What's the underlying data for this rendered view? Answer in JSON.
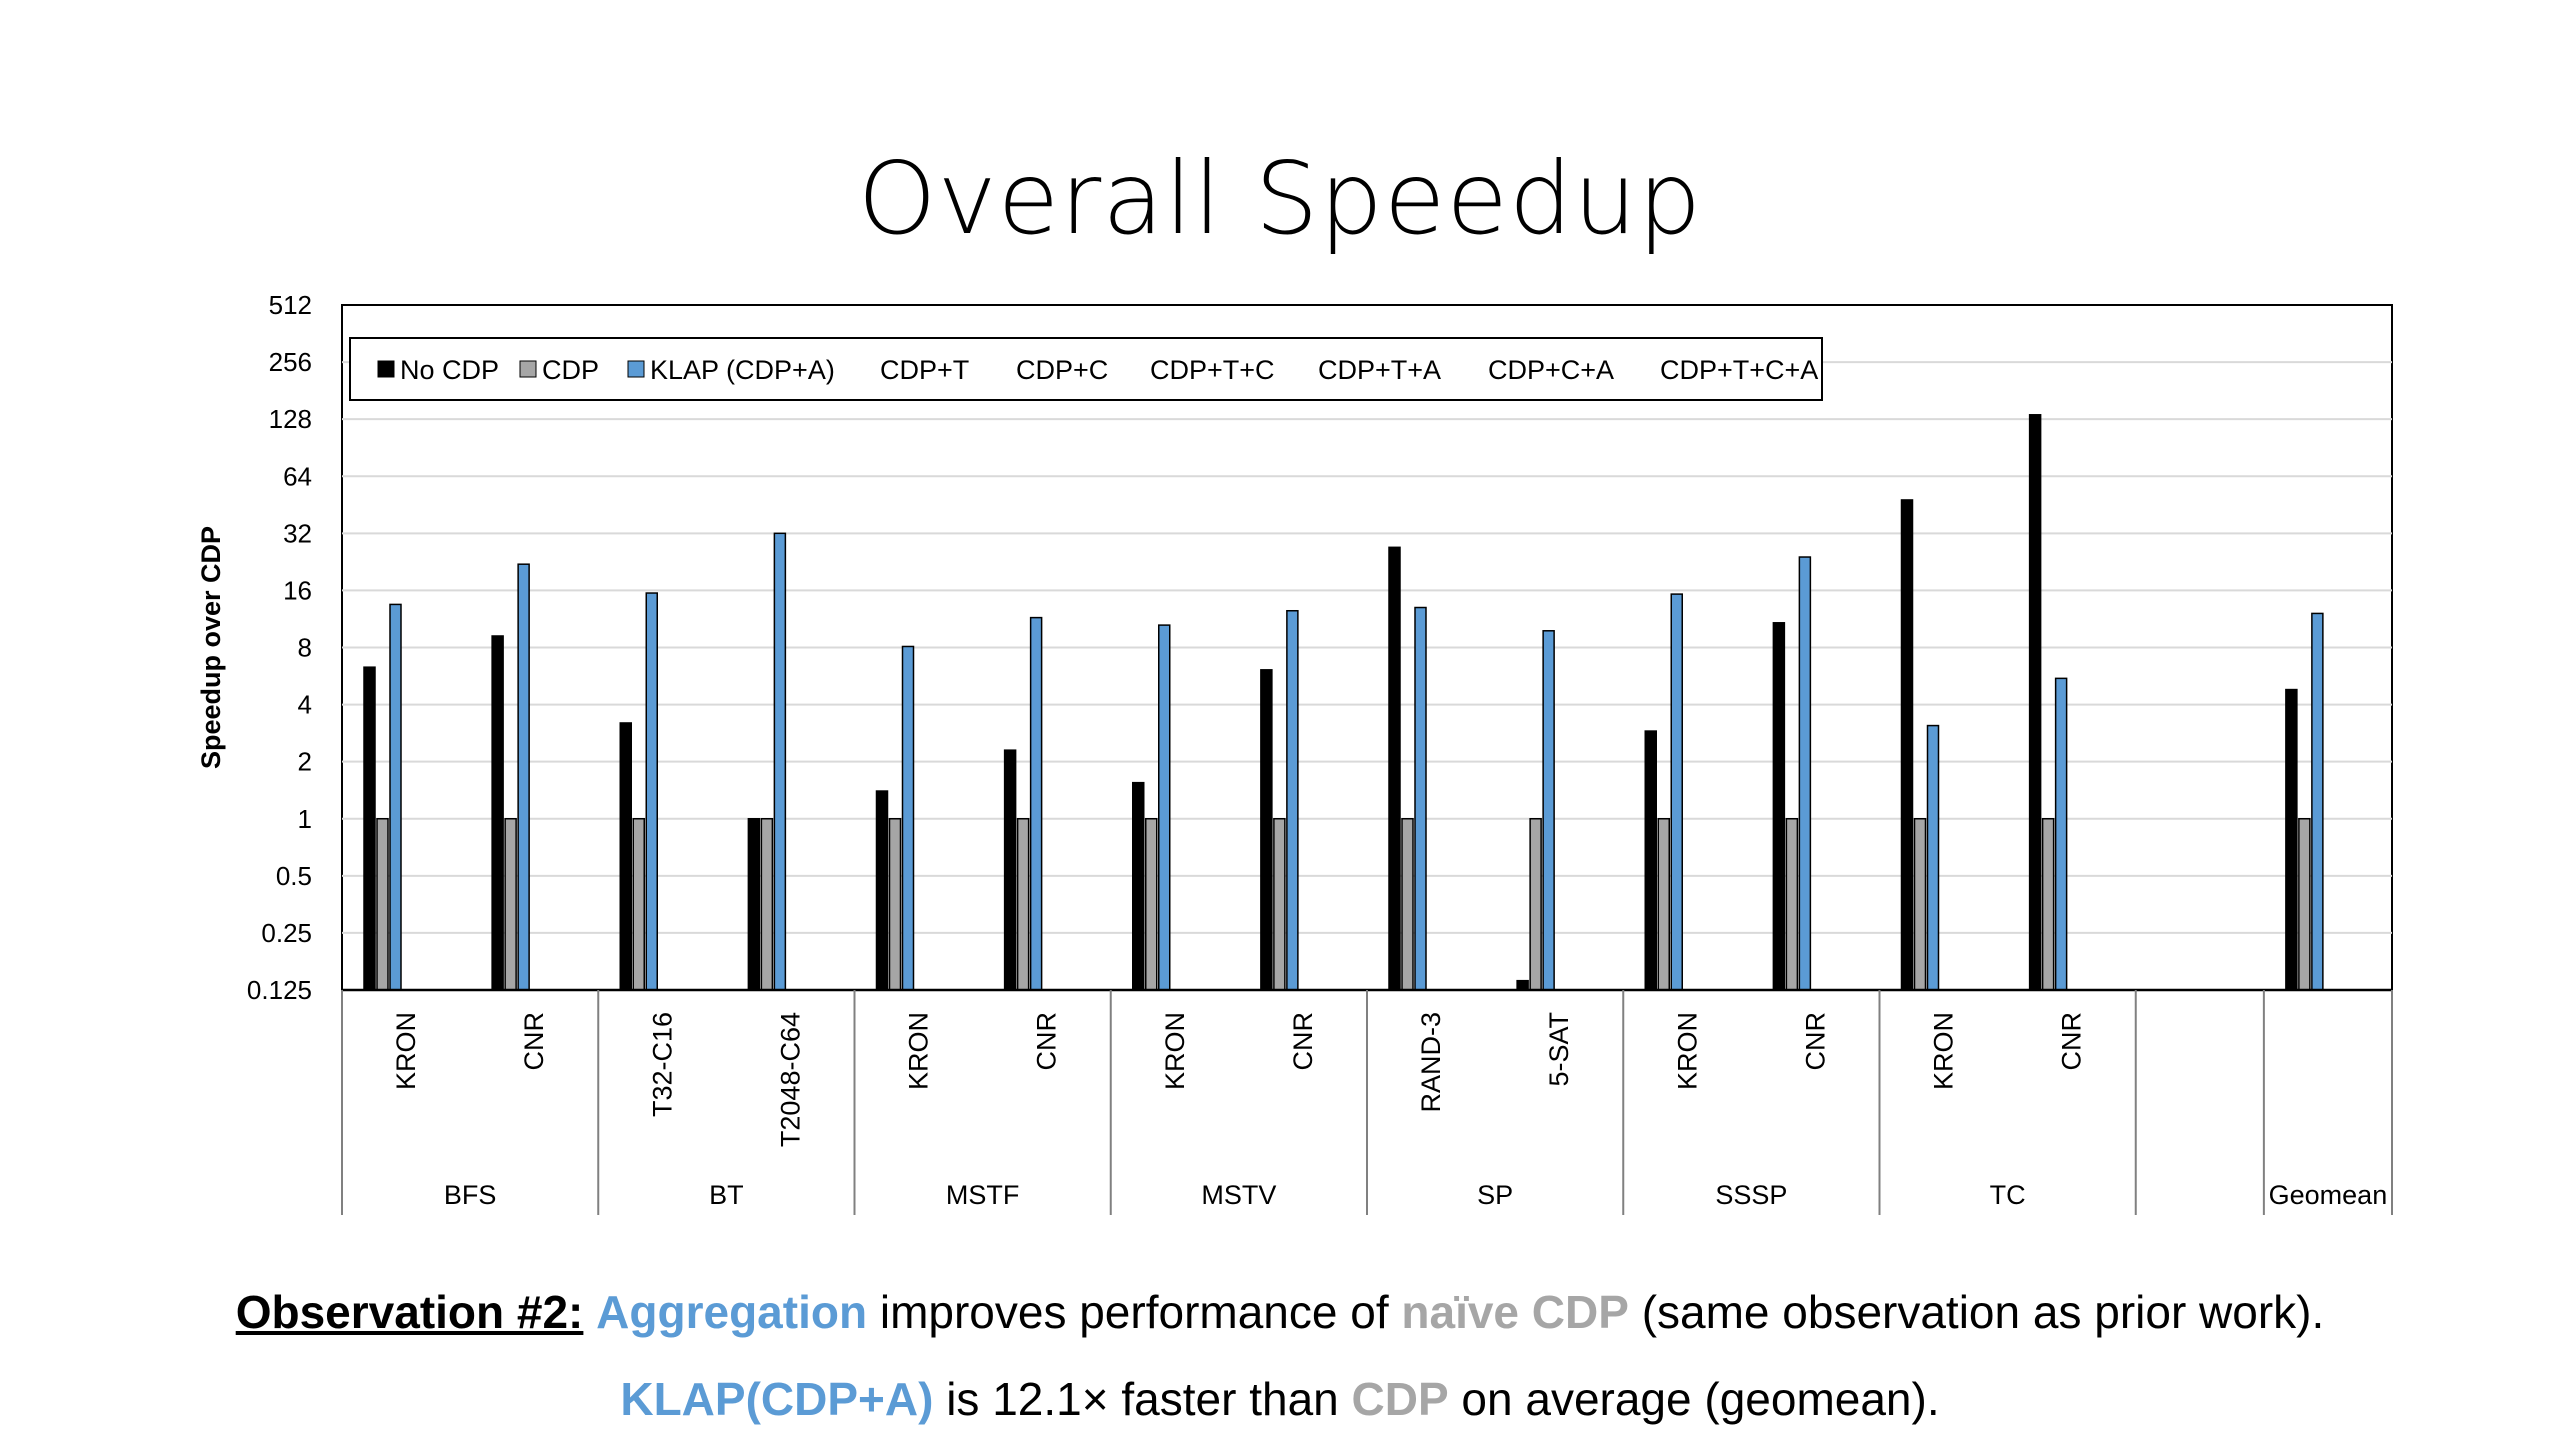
{
  "slide": {
    "title": "Overall Speedup"
  },
  "chart_data": {
    "type": "bar",
    "ylabel": "Speedup over CDP",
    "yscale": "log2",
    "ylim": [
      0.125,
      512
    ],
    "yticks": [
      "0.125",
      "0.25",
      "0.5",
      "1",
      "2",
      "4",
      "8",
      "16",
      "32",
      "64",
      "128",
      "256",
      "512"
    ],
    "grid": true,
    "legend_position": "top-left",
    "legend": [
      "No CDP",
      "CDP",
      "KLAP (CDP+A)",
      "CDP+T",
      "CDP+C",
      "CDP+T+C",
      "CDP+T+A",
      "CDP+C+A",
      "CDP+T+C+A"
    ],
    "groups": [
      "BFS",
      "BT",
      "MSTF",
      "MSTV",
      "SP",
      "SSSP",
      "TC",
      "",
      "Geomean"
    ],
    "categories": [
      "KRON",
      "CNR",
      "T32-C16",
      "T2048-C64",
      "KRON",
      "CNR",
      "KRON",
      "CNR",
      "RAND-3",
      "5-SAT",
      "KRON",
      "CNR",
      "KRON",
      "CNR",
      "",
      ""
    ],
    "series": [
      {
        "name": "No CDP",
        "color": "#000000",
        "values": [
          6.3,
          9.2,
          3.2,
          1.0,
          1.4,
          2.3,
          1.55,
          6.1,
          27,
          0.14,
          2.9,
          10.8,
          48,
          135,
          null,
          4.8
        ]
      },
      {
        "name": "CDP",
        "color": "#a6a6a6",
        "values": [
          1,
          1,
          1,
          1,
          1,
          1,
          1,
          1,
          1,
          1,
          1,
          1,
          1,
          1,
          null,
          1
        ]
      },
      {
        "name": "KLAP (CDP+A)",
        "color": "#5b9bd5",
        "values": [
          13.5,
          22,
          15.5,
          32,
          8.1,
          11.5,
          10.5,
          12.5,
          13,
          9.8,
          15.3,
          24,
          3.1,
          5.5,
          null,
          12.1
        ]
      }
    ]
  },
  "observation": {
    "heading": "Observation #2:",
    "line1_aggregation": "Aggregation",
    "line1_middle": " improves performance of ",
    "line1_naive_cdp": "naïve CDP",
    "line1_end": " (same observation as prior work).",
    "line2_klap": "KLAP(CDP+A)",
    "line2_middle": " is 12.1× faster than ",
    "line2_cdp": "CDP",
    "line2_end": " on average (geomean)."
  }
}
